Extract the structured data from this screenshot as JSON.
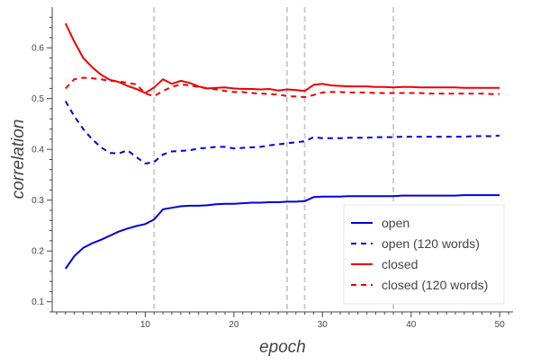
{
  "chart_data": {
    "type": "line",
    "xlabel": "epoch",
    "ylabel": "correlation",
    "xlim": [
      -0.5,
      51.5
    ],
    "ylim": [
      0.08,
      0.68
    ],
    "xticks": [
      10,
      20,
      30,
      40,
      50
    ],
    "yticks": [
      0.1,
      0.2,
      0.3,
      0.4,
      0.5,
      0.6
    ],
    "xtick_labels": [
      "10",
      "20",
      "30",
      "40",
      "50"
    ],
    "ytick_labels": [
      "0.1",
      "0.2",
      "0.3",
      "0.4",
      "0.5",
      "0.6"
    ],
    "vlines": [
      11,
      26,
      28,
      38
    ],
    "legend_position": "bottom-right",
    "grid": false,
    "series": [
      {
        "name": "open",
        "color": "#0000dd",
        "dash": "solid",
        "x": [
          1,
          2,
          3,
          4,
          5,
          6,
          7,
          8,
          9,
          10,
          11,
          12,
          13,
          14,
          15,
          16,
          17,
          18,
          19,
          20,
          21,
          22,
          23,
          24,
          25,
          26,
          27,
          28,
          29,
          30,
          31,
          32,
          33,
          34,
          35,
          36,
          37,
          38,
          39,
          40,
          41,
          42,
          43,
          44,
          45,
          46,
          47,
          48,
          49,
          50
        ],
        "y": [
          0.165,
          0.19,
          0.206,
          0.215,
          0.222,
          0.23,
          0.238,
          0.244,
          0.249,
          0.253,
          0.262,
          0.282,
          0.285,
          0.288,
          0.289,
          0.289,
          0.29,
          0.292,
          0.293,
          0.293,
          0.294,
          0.295,
          0.295,
          0.296,
          0.296,
          0.297,
          0.297,
          0.298,
          0.306,
          0.307,
          0.307,
          0.307,
          0.308,
          0.308,
          0.308,
          0.308,
          0.308,
          0.308,
          0.309,
          0.309,
          0.309,
          0.309,
          0.309,
          0.309,
          0.309,
          0.31,
          0.31,
          0.31,
          0.31,
          0.31
        ]
      },
      {
        "name": "open (120 words)",
        "color": "#0000dd",
        "dash": "dashed",
        "x": [
          1,
          2,
          3,
          4,
          5,
          6,
          7,
          8,
          9,
          10,
          11,
          12,
          13,
          14,
          15,
          16,
          17,
          18,
          19,
          20,
          21,
          22,
          23,
          24,
          25,
          26,
          27,
          28,
          29,
          30,
          31,
          32,
          33,
          34,
          35,
          36,
          37,
          38,
          39,
          40,
          41,
          42,
          43,
          44,
          45,
          46,
          47,
          48,
          49,
          50
        ],
        "y": [
          0.495,
          0.465,
          0.44,
          0.42,
          0.404,
          0.393,
          0.392,
          0.398,
          0.385,
          0.372,
          0.375,
          0.39,
          0.396,
          0.397,
          0.398,
          0.402,
          0.403,
          0.405,
          0.405,
          0.402,
          0.403,
          0.404,
          0.405,
          0.408,
          0.41,
          0.412,
          0.414,
          0.416,
          0.424,
          0.422,
          0.422,
          0.422,
          0.423,
          0.423,
          0.423,
          0.424,
          0.424,
          0.424,
          0.425,
          0.425,
          0.425,
          0.425,
          0.425,
          0.425,
          0.425,
          0.425,
          0.426,
          0.426,
          0.426,
          0.427
        ]
      },
      {
        "name": "closed",
        "color": "#ee0000",
        "dash": "solid",
        "x": [
          1,
          2,
          3,
          4,
          5,
          6,
          7,
          8,
          9,
          10,
          11,
          12,
          13,
          14,
          15,
          16,
          17,
          18,
          19,
          20,
          21,
          22,
          23,
          24,
          25,
          26,
          27,
          28,
          29,
          30,
          31,
          32,
          33,
          34,
          35,
          36,
          37,
          38,
          39,
          40,
          41,
          42,
          43,
          44,
          45,
          46,
          47,
          48,
          49,
          50
        ],
        "y": [
          0.648,
          0.612,
          0.58,
          0.562,
          0.547,
          0.537,
          0.533,
          0.525,
          0.519,
          0.511,
          0.522,
          0.538,
          0.529,
          0.535,
          0.531,
          0.524,
          0.52,
          0.521,
          0.522,
          0.52,
          0.519,
          0.519,
          0.518,
          0.519,
          0.516,
          0.518,
          0.517,
          0.515,
          0.527,
          0.529,
          0.526,
          0.525,
          0.524,
          0.524,
          0.524,
          0.523,
          0.523,
          0.522,
          0.523,
          0.523,
          0.522,
          0.522,
          0.522,
          0.522,
          0.522,
          0.521,
          0.521,
          0.521,
          0.521,
          0.521
        ]
      },
      {
        "name": "closed (120 words)",
        "color": "#ee0000",
        "dash": "dashed",
        "x": [
          1,
          2,
          3,
          4,
          5,
          6,
          7,
          8,
          9,
          10,
          11,
          12,
          13,
          14,
          15,
          16,
          17,
          18,
          19,
          20,
          21,
          22,
          23,
          24,
          25,
          26,
          27,
          28,
          29,
          30,
          31,
          32,
          33,
          34,
          35,
          36,
          37,
          38,
          39,
          40,
          41,
          42,
          43,
          44,
          45,
          46,
          47,
          48,
          49,
          50
        ],
        "y": [
          0.52,
          0.538,
          0.541,
          0.54,
          0.538,
          0.535,
          0.534,
          0.531,
          0.528,
          0.51,
          0.505,
          0.515,
          0.523,
          0.528,
          0.526,
          0.523,
          0.52,
          0.518,
          0.515,
          0.513,
          0.513,
          0.511,
          0.51,
          0.509,
          0.508,
          0.505,
          0.504,
          0.503,
          0.507,
          0.512,
          0.513,
          0.513,
          0.512,
          0.512,
          0.512,
          0.511,
          0.511,
          0.511,
          0.511,
          0.511,
          0.511,
          0.51,
          0.51,
          0.51,
          0.51,
          0.51,
          0.51,
          0.51,
          0.509,
          0.509
        ]
      }
    ]
  }
}
